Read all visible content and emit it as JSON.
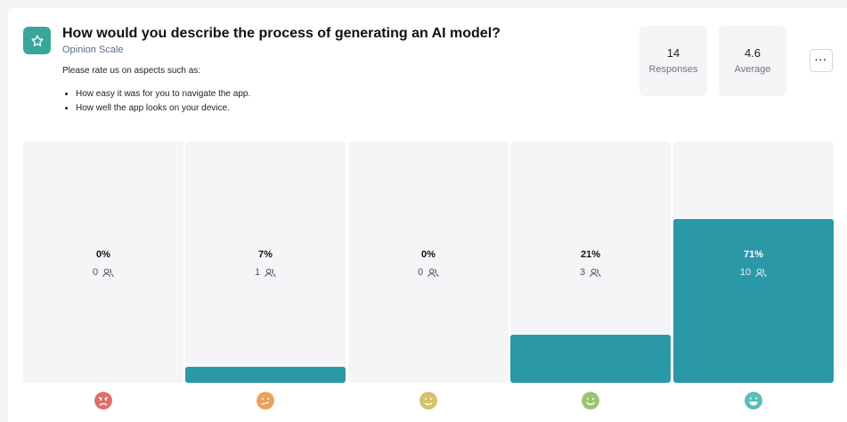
{
  "question": {
    "title": "How would you describe the process of generating an AI model?",
    "type": "Opinion Scale",
    "description": "Please rate us on aspects such as:",
    "bullets": [
      "How easy it was for you to navigate the app.",
      "How well the app looks on your device."
    ],
    "icon": "star-icon",
    "accent": "#3aa59a"
  },
  "stats": {
    "responses_value": "14",
    "responses_label": "Responses",
    "average_value": "4.6",
    "average_label": "Average"
  },
  "menu": {
    "label": "···"
  },
  "options": [
    {
      "pct": "0%",
      "count": "0",
      "fill": 0,
      "face": "very-sad-face-icon",
      "color": "#e06c6c"
    },
    {
      "pct": "7%",
      "count": "1",
      "fill": 0.07,
      "face": "confused-face-icon",
      "color": "#e8a25a"
    },
    {
      "pct": "0%",
      "count": "0",
      "fill": 0,
      "face": "neutral-face-icon",
      "color": "#d4c266"
    },
    {
      "pct": "21%",
      "count": "3",
      "fill": 0.21,
      "face": "smile-face-icon",
      "color": "#98c46e"
    },
    {
      "pct": "71%",
      "count": "10",
      "fill": 0.71,
      "face": "grin-face-icon",
      "color": "#5bbdb8"
    }
  ],
  "bar_color": "#2a98a6"
}
